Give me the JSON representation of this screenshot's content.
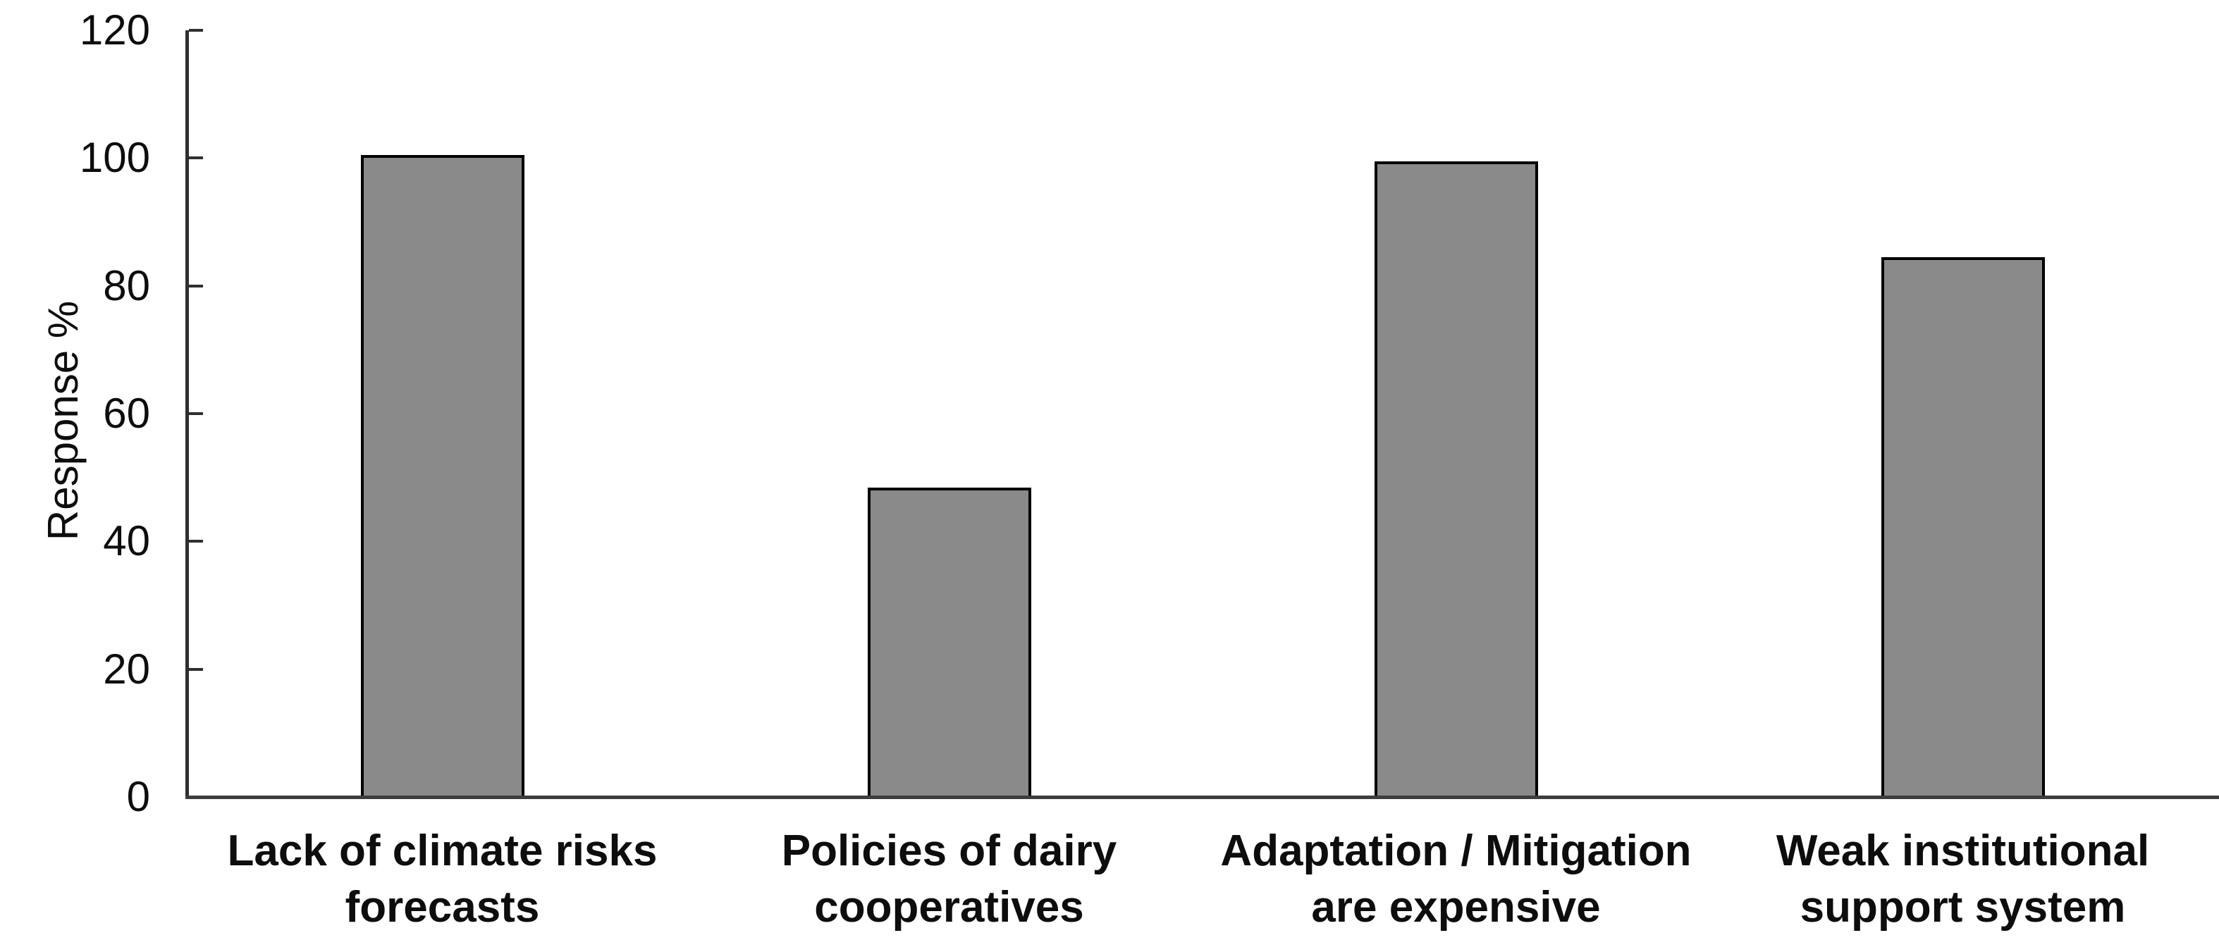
{
  "chart_data": {
    "type": "bar",
    "title": "",
    "xlabel": "",
    "ylabel": "Response %",
    "ylim": [
      0,
      120
    ],
    "yticks": [
      0,
      20,
      40,
      60,
      80,
      100,
      120
    ],
    "ytick_labels": [
      "0",
      "20",
      "40",
      "60",
      "80",
      "100",
      "120"
    ],
    "categories": [
      "Lack of climate risks forecasts",
      "Policies of dairy cooperatives",
      "Adaptation / Mitigation are expensive",
      "Weak institutional support system"
    ],
    "category_lines": [
      [
        "Lack of climate risks",
        "forecasts"
      ],
      [
        "Policies of dairy",
        "cooperatives"
      ],
      [
        "Adaptation / Mitigation",
        "are expensive"
      ],
      [
        "Weak institutional",
        "support system"
      ]
    ],
    "values": [
      100,
      48,
      99,
      84
    ],
    "grid": false,
    "legend": null,
    "colors": {
      "bar_fill": "#8a8a8a",
      "bar_border": "#000000",
      "axis": "#2f2f2f",
      "baseline": "#3d3d3d",
      "text": "#0d0d0d",
      "background": "#ffffff"
    }
  }
}
